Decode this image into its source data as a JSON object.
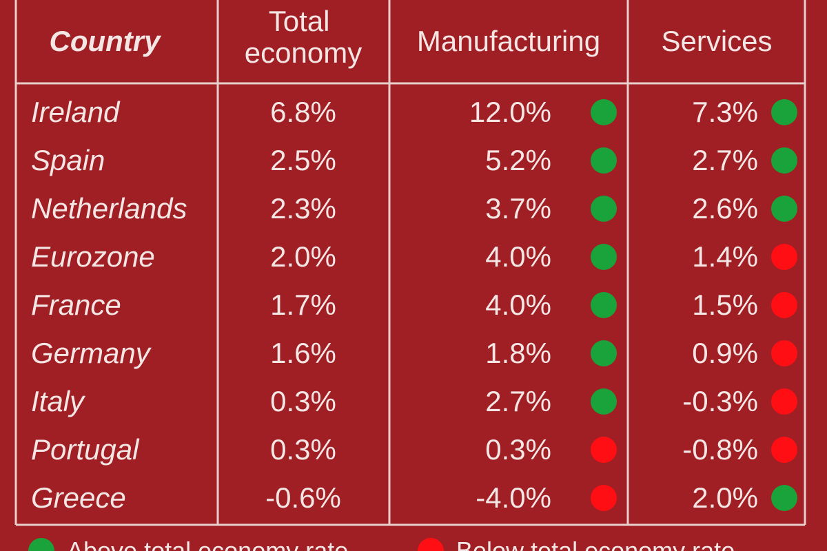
{
  "chart_data": {
    "type": "table",
    "columns": [
      "Country",
      "Total economy",
      "Manufacturing",
      "Services"
    ],
    "rows": [
      {
        "country": "Ireland",
        "total": "6.8%",
        "manufacturing": "12.0%",
        "manufacturing_above": true,
        "services": "7.3%",
        "services_above": true
      },
      {
        "country": "Spain",
        "total": "2.5%",
        "manufacturing": "5.2%",
        "manufacturing_above": true,
        "services": "2.7%",
        "services_above": true
      },
      {
        "country": "Netherlands",
        "total": "2.3%",
        "manufacturing": "3.7%",
        "manufacturing_above": true,
        "services": "2.6%",
        "services_above": true
      },
      {
        "country": "Eurozone",
        "total": "2.0%",
        "manufacturing": "4.0%",
        "manufacturing_above": true,
        "services": "1.4%",
        "services_above": false
      },
      {
        "country": "France",
        "total": "1.7%",
        "manufacturing": "4.0%",
        "manufacturing_above": true,
        "services": "1.5%",
        "services_above": false
      },
      {
        "country": "Germany",
        "total": "1.6%",
        "manufacturing": "1.8%",
        "manufacturing_above": true,
        "services": "0.9%",
        "services_above": false
      },
      {
        "country": "Italy",
        "total": "0.3%",
        "manufacturing": "2.7%",
        "manufacturing_above": true,
        "services": "-0.3%",
        "services_above": false
      },
      {
        "country": "Portugal",
        "total": "0.3%",
        "manufacturing": "0.3%",
        "manufacturing_above": false,
        "services": "-0.8%",
        "services_above": false
      },
      {
        "country": "Greece",
        "total": "-0.6%",
        "manufacturing": "-4.0%",
        "manufacturing_above": false,
        "services": "2.0%",
        "services_above": true
      }
    ],
    "legend": [
      {
        "label": "Above total economy rate",
        "color": "#1aa33a"
      },
      {
        "label": "Below total economy rate",
        "color": "#ff0f14"
      }
    ]
  },
  "colors": {
    "background": "#a01f24",
    "above": "#1aa33a",
    "below": "#ff0f14",
    "text": "#f3e6e4"
  }
}
